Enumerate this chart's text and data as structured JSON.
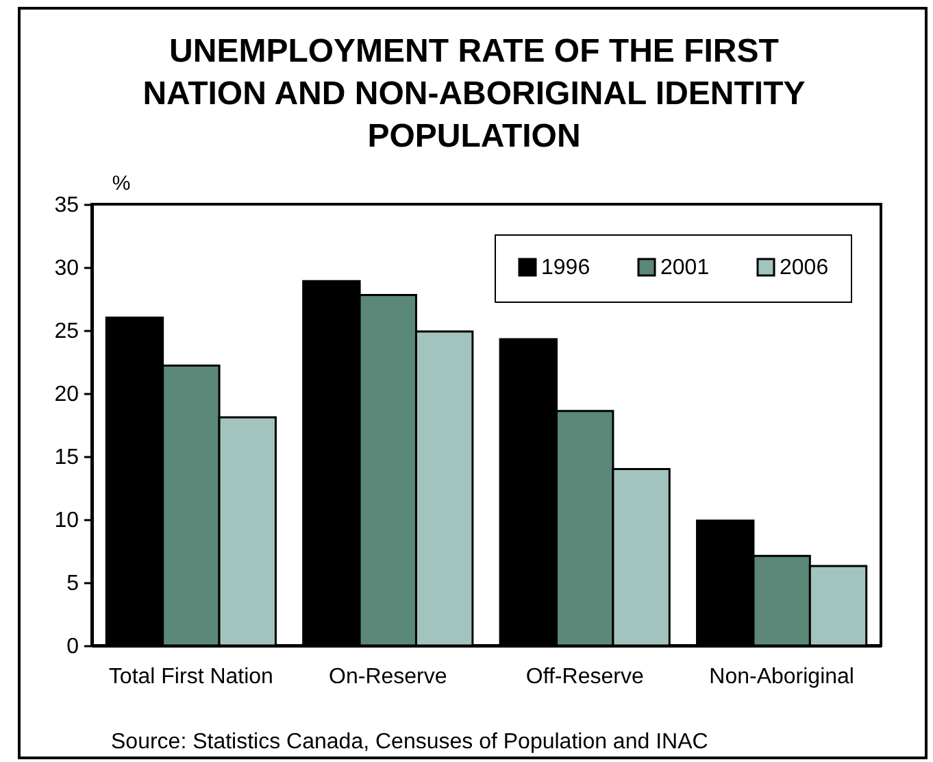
{
  "chart_data": {
    "type": "bar",
    "title": "UNEMPLOYMENT RATE OF THE FIRST NATION AND NON-ABORIGINAL IDENTITY POPULATION",
    "ylabel": "%",
    "categories": [
      "Total First Nation",
      "On-Reserve",
      "Off-Reserve",
      "Non-Aboriginal"
    ],
    "series": [
      {
        "name": "1996",
        "color": "#000000",
        "values": [
          26.0,
          28.9,
          24.3,
          9.9
        ]
      },
      {
        "name": "2001",
        "color": "#5b8878",
        "values": [
          22.2,
          27.8,
          18.6,
          7.1
        ]
      },
      {
        "name": "2006",
        "color": "#a3c4be",
        "values": [
          18.1,
          24.9,
          14.0,
          6.3
        ]
      }
    ],
    "ylim": [
      0,
      35
    ],
    "yticks": [
      0,
      5,
      10,
      15,
      20,
      25,
      30,
      35
    ],
    "legend": "top right",
    "annotations": [
      "Source: Statistics Canada, Censuses of Population and INAC"
    ]
  }
}
